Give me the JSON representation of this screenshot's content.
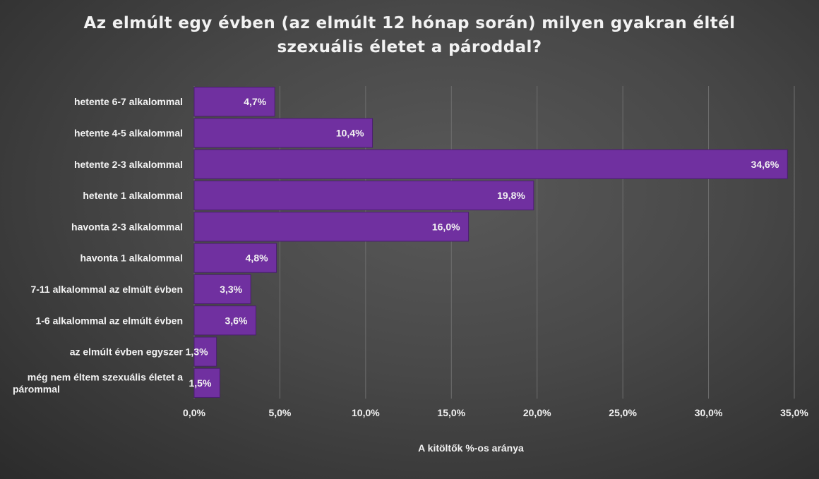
{
  "chart_data": {
    "type": "bar",
    "orientation": "horizontal",
    "title_lines": [
      "Az elmúlt egy évben (az elmúlt 12 hónap során) milyen gyakran éltél",
      "szexuális életet a pároddal?"
    ],
    "xlabel": "A kitöltők %-os aránya",
    "ylabel": "",
    "categories": [
      [
        "hetente 6-7 alkalommal"
      ],
      [
        "hetente 4-5 alkalommal"
      ],
      [
        "hetente 2-3 alkalommal"
      ],
      [
        "hetente 1 alkalommal"
      ],
      [
        "havonta 2-3 alkalommal"
      ],
      [
        "havonta 1 alkalommal"
      ],
      [
        "7-11 alkalommal az elmúlt évben"
      ],
      [
        "1-6 alkalommal az elmúlt évben"
      ],
      [
        "az elmúlt évben egyszer"
      ],
      [
        "még nem éltem szexuális életet a",
        "párommal"
      ]
    ],
    "values": [
      4.7,
      10.4,
      34.6,
      19.8,
      16.0,
      4.8,
      3.3,
      3.6,
      1.3,
      1.5
    ],
    "data_labels": [
      "4,7%",
      "10,4%",
      "34,6%",
      "19,8%",
      "16,0%",
      "4,8%",
      "3,3%",
      "3,6%",
      "1,3%",
      "1,5%"
    ],
    "xlim": [
      0,
      35
    ],
    "xticks": [
      0,
      5,
      10,
      15,
      20,
      25,
      30,
      35
    ],
    "xtick_labels": [
      "0,0%",
      "5,0%",
      "10,0%",
      "15,0%",
      "20,0%",
      "25,0%",
      "30,0%",
      "35,0%"
    ],
    "grid": "vertical",
    "legend": "none",
    "colors": {
      "bar_fill": "#7030a0",
      "bar_stroke": "#4a1f6e",
      "grid": "#6e6e6e",
      "text": "#f2f2f2"
    }
  }
}
